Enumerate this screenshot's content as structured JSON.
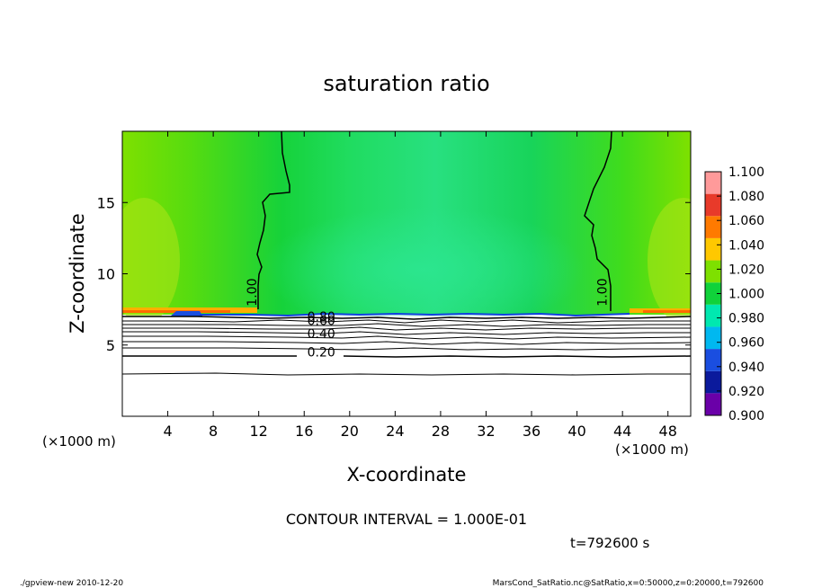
{
  "chart_data": {
    "type": "heatmap",
    "title": "saturation ratio",
    "xlabel": "X-coordinate",
    "ylabel": "Z-coordinate",
    "x_unit_left": "(×1000 m)",
    "x_unit_right": "(×1000 m)",
    "xlim": [
      0,
      50
    ],
    "ylim": [
      0,
      20
    ],
    "x_ticks": [
      4,
      8,
      12,
      16,
      20,
      24,
      28,
      32,
      36,
      40,
      44,
      48
    ],
    "y_ticks": [
      5,
      10,
      15
    ],
    "colorbar": {
      "levels": [
        "0.900",
        "0.920",
        "0.940",
        "0.960",
        "0.980",
        "1.000",
        "1.020",
        "1.040",
        "1.060",
        "1.080",
        "1.100"
      ],
      "colors": [
        "#6a00a8",
        "#0b1a9c",
        "#1a4ee0",
        "#00b8f0",
        "#00e8b0",
        "#10d23a",
        "#7ee000",
        "#ffc800",
        "#ff7a00",
        "#e83a2a",
        "#ff9a9a"
      ]
    },
    "contour_labels": [
      {
        "text": "1.00",
        "x": 11.8,
        "z": 8.7
      },
      {
        "text": "1.00",
        "x": 42.6,
        "z": 8.7
      },
      {
        "text": "0.80",
        "x": 17.5,
        "z": 6.7
      },
      {
        "text": "0.60",
        "x": 17.5,
        "z": 6.4
      },
      {
        "text": "0.40",
        "x": 17.5,
        "z": 5.5
      },
      {
        "text": "0.20",
        "x": 17.5,
        "z": 4.2
      }
    ],
    "contour_interval_text": "CONTOUR INTERVAL = 1.000E-01",
    "time_text": "t=792600 s"
  },
  "footer": {
    "left": "./gpview-new   2010-12-20",
    "right": "MarsCond_SatRatio.nc@SatRatio,x=0:50000,z=0:20000,t=792600"
  }
}
